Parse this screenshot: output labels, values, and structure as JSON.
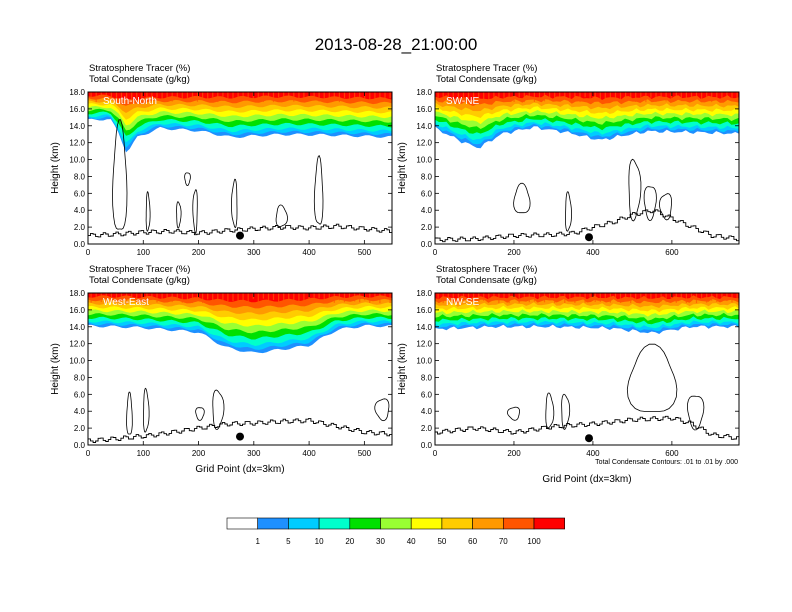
{
  "title": "2013-08-28_21:00:00",
  "colors": {
    "levels": [
      "#ffffff",
      "#1e90ff",
      "#00ccff",
      "#00ffcc",
      "#00e000",
      "#99ff33",
      "#ffff00",
      "#ffcc00",
      "#ff9900",
      "#ff5500",
      "#ff0000"
    ],
    "contour": "#000000",
    "marker": "#000000"
  },
  "chart_data": [
    {
      "type": "heatmap",
      "panel_label": "South-North",
      "var1_label": "Stratosphere Tracer   (%)",
      "var2_label": "Total Condensate   (g/kg)",
      "xlabel": "",
      "ylabel": "Height (km)",
      "xlim": [
        0,
        550
      ],
      "ylim": [
        0,
        18
      ],
      "xticks": [
        "0",
        "100",
        "200",
        "300",
        "400",
        "500"
      ],
      "yticks": [
        "0.0",
        "2.0",
        "4.0",
        "6.0",
        "8.0",
        "10.0",
        "12.0",
        "14.0",
        "16.0",
        "18.0"
      ],
      "tracer_base": [
        [
          0,
          14.5
        ],
        [
          40,
          14.7
        ],
        [
          55,
          13.0
        ],
        [
          70,
          10.5
        ],
        [
          90,
          12.5
        ],
        [
          130,
          13.6
        ],
        [
          200,
          13.2
        ],
        [
          260,
          12.3
        ],
        [
          350,
          12.6
        ],
        [
          450,
          12.6
        ],
        [
          550,
          12.5
        ]
      ],
      "terrain": [
        [
          0,
          1.0
        ],
        [
          60,
          1.2
        ],
        [
          100,
          1.4
        ],
        [
          150,
          1.5
        ],
        [
          200,
          1.3
        ],
        [
          250,
          1.6
        ],
        [
          300,
          1.8
        ],
        [
          350,
          2.0
        ],
        [
          400,
          1.9
        ],
        [
          450,
          2.1
        ],
        [
          500,
          1.8
        ],
        [
          550,
          1.5
        ]
      ],
      "condensate_contours": [
        {
          "x0": 45,
          "x1": 70,
          "y0": 1.0,
          "y1": 14.0
        },
        {
          "x0": 105,
          "x1": 112,
          "y0": 1.5,
          "y1": 6.0
        },
        {
          "x0": 160,
          "x1": 168,
          "y0": 2.0,
          "y1": 5.0
        },
        {
          "x0": 175,
          "x1": 185,
          "y0": 7.0,
          "y1": 8.5
        },
        {
          "x0": 190,
          "x1": 198,
          "y0": 1.5,
          "y1": 6.5
        },
        {
          "x0": 260,
          "x1": 270,
          "y0": 2.0,
          "y1": 7.5
        },
        {
          "x0": 410,
          "x1": 425,
          "y0": 2.0,
          "y1": 10.0
        },
        {
          "x0": 340,
          "x1": 360,
          "y0": 2.0,
          "y1": 4.5
        }
      ],
      "marker": [
        275,
        1.0
      ]
    },
    {
      "type": "heatmap",
      "panel_label": "SW-NE",
      "var1_label": "Stratosphere Tracer   (%)",
      "var2_label": "Total Condensate   (g/kg)",
      "xlabel": "",
      "ylabel": "Height (km)",
      "xlim": [
        0,
        770
      ],
      "ylim": [
        0,
        18
      ],
      "xticks": [
        "0",
        "200",
        "400",
        "600"
      ],
      "yticks": [
        "0.0",
        "2.0",
        "4.0",
        "6.0",
        "8.0",
        "10.0",
        "12.0",
        "14.0",
        "16.0",
        "18.0"
      ],
      "tracer_base": [
        [
          0,
          13.5
        ],
        [
          60,
          12.0
        ],
        [
          110,
          11.0
        ],
        [
          170,
          12.8
        ],
        [
          250,
          13.6
        ],
        [
          330,
          13.0
        ],
        [
          420,
          12.0
        ],
        [
          470,
          12.5
        ],
        [
          540,
          13.1
        ],
        [
          650,
          13.0
        ],
        [
          770,
          12.8
        ]
      ],
      "terrain": [
        [
          0,
          0.5
        ],
        [
          100,
          0.6
        ],
        [
          200,
          1.0
        ],
        [
          300,
          1.1
        ],
        [
          350,
          1.3
        ],
        [
          400,
          2.0
        ],
        [
          450,
          2.6
        ],
        [
          500,
          3.5
        ],
        [
          550,
          4.0
        ],
        [
          600,
          3.0
        ],
        [
          650,
          2.0
        ],
        [
          700,
          1.0
        ],
        [
          770,
          0.6
        ]
      ],
      "condensate_contours": [
        {
          "x0": 200,
          "x1": 240,
          "y0": 3.5,
          "y1": 7.0
        },
        {
          "x0": 330,
          "x1": 345,
          "y0": 1.5,
          "y1": 6.0
        },
        {
          "x0": 490,
          "x1": 520,
          "y0": 3.0,
          "y1": 10.0
        },
        {
          "x0": 530,
          "x1": 560,
          "y0": 3.0,
          "y1": 7.0
        },
        {
          "x0": 570,
          "x1": 600,
          "y0": 3.0,
          "y1": 6.0
        }
      ],
      "marker": [
        390,
        0.8
      ]
    },
    {
      "type": "heatmap",
      "panel_label": "West-East",
      "var1_label": "Stratosphere Tracer   (%)",
      "var2_label": "Total Condensate   (g/kg)",
      "xlabel": "Grid Point (dx=3km)",
      "ylabel": "Height (km)",
      "xlim": [
        0,
        550
      ],
      "ylim": [
        0,
        18
      ],
      "xticks": [
        "0",
        "100",
        "200",
        "300",
        "400",
        "500"
      ],
      "yticks": [
        "0.0",
        "2.0",
        "4.0",
        "6.0",
        "8.0",
        "10.0",
        "12.0",
        "14.0",
        "16.0",
        "18.0"
      ],
      "tracer_base": [
        [
          0,
          13.8
        ],
        [
          100,
          13.6
        ],
        [
          200,
          13.2
        ],
        [
          250,
          11.3
        ],
        [
          300,
          10.6
        ],
        [
          400,
          11.4
        ],
        [
          450,
          13.3
        ],
        [
          500,
          13.8
        ],
        [
          550,
          13.8
        ]
      ],
      "terrain": [
        [
          0,
          0.5
        ],
        [
          60,
          0.8
        ],
        [
          120,
          1.2
        ],
        [
          200,
          2.0
        ],
        [
          250,
          2.5
        ],
        [
          300,
          2.6
        ],
        [
          350,
          2.8
        ],
        [
          400,
          2.9
        ],
        [
          450,
          2.2
        ],
        [
          500,
          1.5
        ],
        [
          550,
          1.3
        ]
      ],
      "condensate_contours": [
        {
          "x0": 70,
          "x1": 80,
          "y0": 1.0,
          "y1": 6.0
        },
        {
          "x0": 100,
          "x1": 110,
          "y0": 1.5,
          "y1": 6.5
        },
        {
          "x0": 225,
          "x1": 245,
          "y0": 2.0,
          "y1": 6.5
        },
        {
          "x0": 195,
          "x1": 210,
          "y0": 3.0,
          "y1": 4.5
        },
        {
          "x0": 520,
          "x1": 545,
          "y0": 3.0,
          "y1": 5.5
        }
      ],
      "marker": [
        275,
        1.0
      ]
    },
    {
      "type": "heatmap",
      "panel_label": "NW-SE",
      "var1_label": "Stratosphere Tracer   (%)",
      "var2_label": "Total Condensate   (g/kg)",
      "xlabel": "Grid Point (dx=3km)",
      "ylabel": "Height (km)",
      "xlim": [
        0,
        770
      ],
      "ylim": [
        0,
        18
      ],
      "xticks": [
        "0",
        "200",
        "400",
        "600"
      ],
      "yticks": [
        "0.0",
        "2.0",
        "4.0",
        "6.0",
        "8.0",
        "10.0",
        "12.0",
        "14.0",
        "16.0",
        "18.0"
      ],
      "tracer_base": [
        [
          0,
          13.5
        ],
        [
          150,
          13.8
        ],
        [
          300,
          13.8
        ],
        [
          450,
          13.6
        ],
        [
          550,
          13.0
        ],
        [
          650,
          13.8
        ],
        [
          770,
          13.8
        ]
      ],
      "terrain": [
        [
          0,
          1.5
        ],
        [
          100,
          2.0
        ],
        [
          200,
          1.5
        ],
        [
          300,
          2.2
        ],
        [
          400,
          2.5
        ],
        [
          500,
          3.0
        ],
        [
          600,
          3.2
        ],
        [
          650,
          2.5
        ],
        [
          700,
          1.2
        ],
        [
          770,
          0.8
        ]
      ],
      "condensate_contours": [
        {
          "x0": 490,
          "x1": 610,
          "y0": 3.5,
          "y1": 11.5
        },
        {
          "x0": 280,
          "x1": 300,
          "y0": 2.0,
          "y1": 6.0
        },
        {
          "x0": 320,
          "x1": 340,
          "y0": 2.0,
          "y1": 6.0
        },
        {
          "x0": 640,
          "x1": 680,
          "y0": 2.0,
          "y1": 6.0
        },
        {
          "x0": 185,
          "x1": 215,
          "y0": 3.0,
          "y1": 4.5
        }
      ],
      "marker": [
        390,
        0.8
      ],
      "contour_note": "Total Condensate Contours: .01 to .01 by .000"
    }
  ],
  "colorbar": {
    "labels": [
      "1",
      "5",
      "10",
      "20",
      "30",
      "40",
      "50",
      "60",
      "70",
      "100"
    ]
  }
}
